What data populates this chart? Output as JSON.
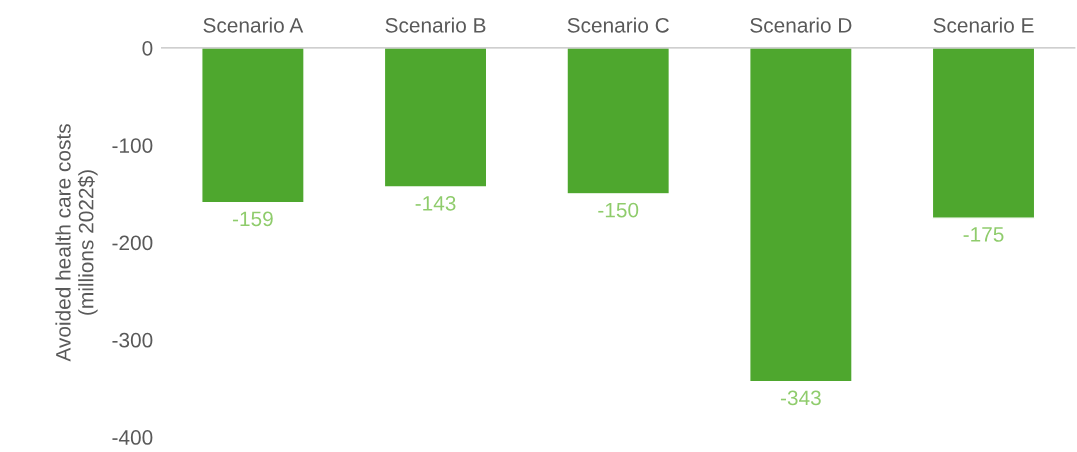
{
  "chart_data": {
    "type": "bar",
    "ylabel": "Avoided health care costs\n(millions 2022$)",
    "categories": [
      "Scenario A",
      "Scenario B",
      "Scenario C",
      "Scenario D",
      "Scenario E"
    ],
    "values": [
      -159,
      -143,
      -150,
      -343,
      -175
    ],
    "color": "#4ea72e",
    "ylim": [
      -400,
      0
    ],
    "yticks": [
      0,
      -100,
      -200,
      -300,
      -400
    ],
    "grid": false,
    "data_labels": true
  }
}
